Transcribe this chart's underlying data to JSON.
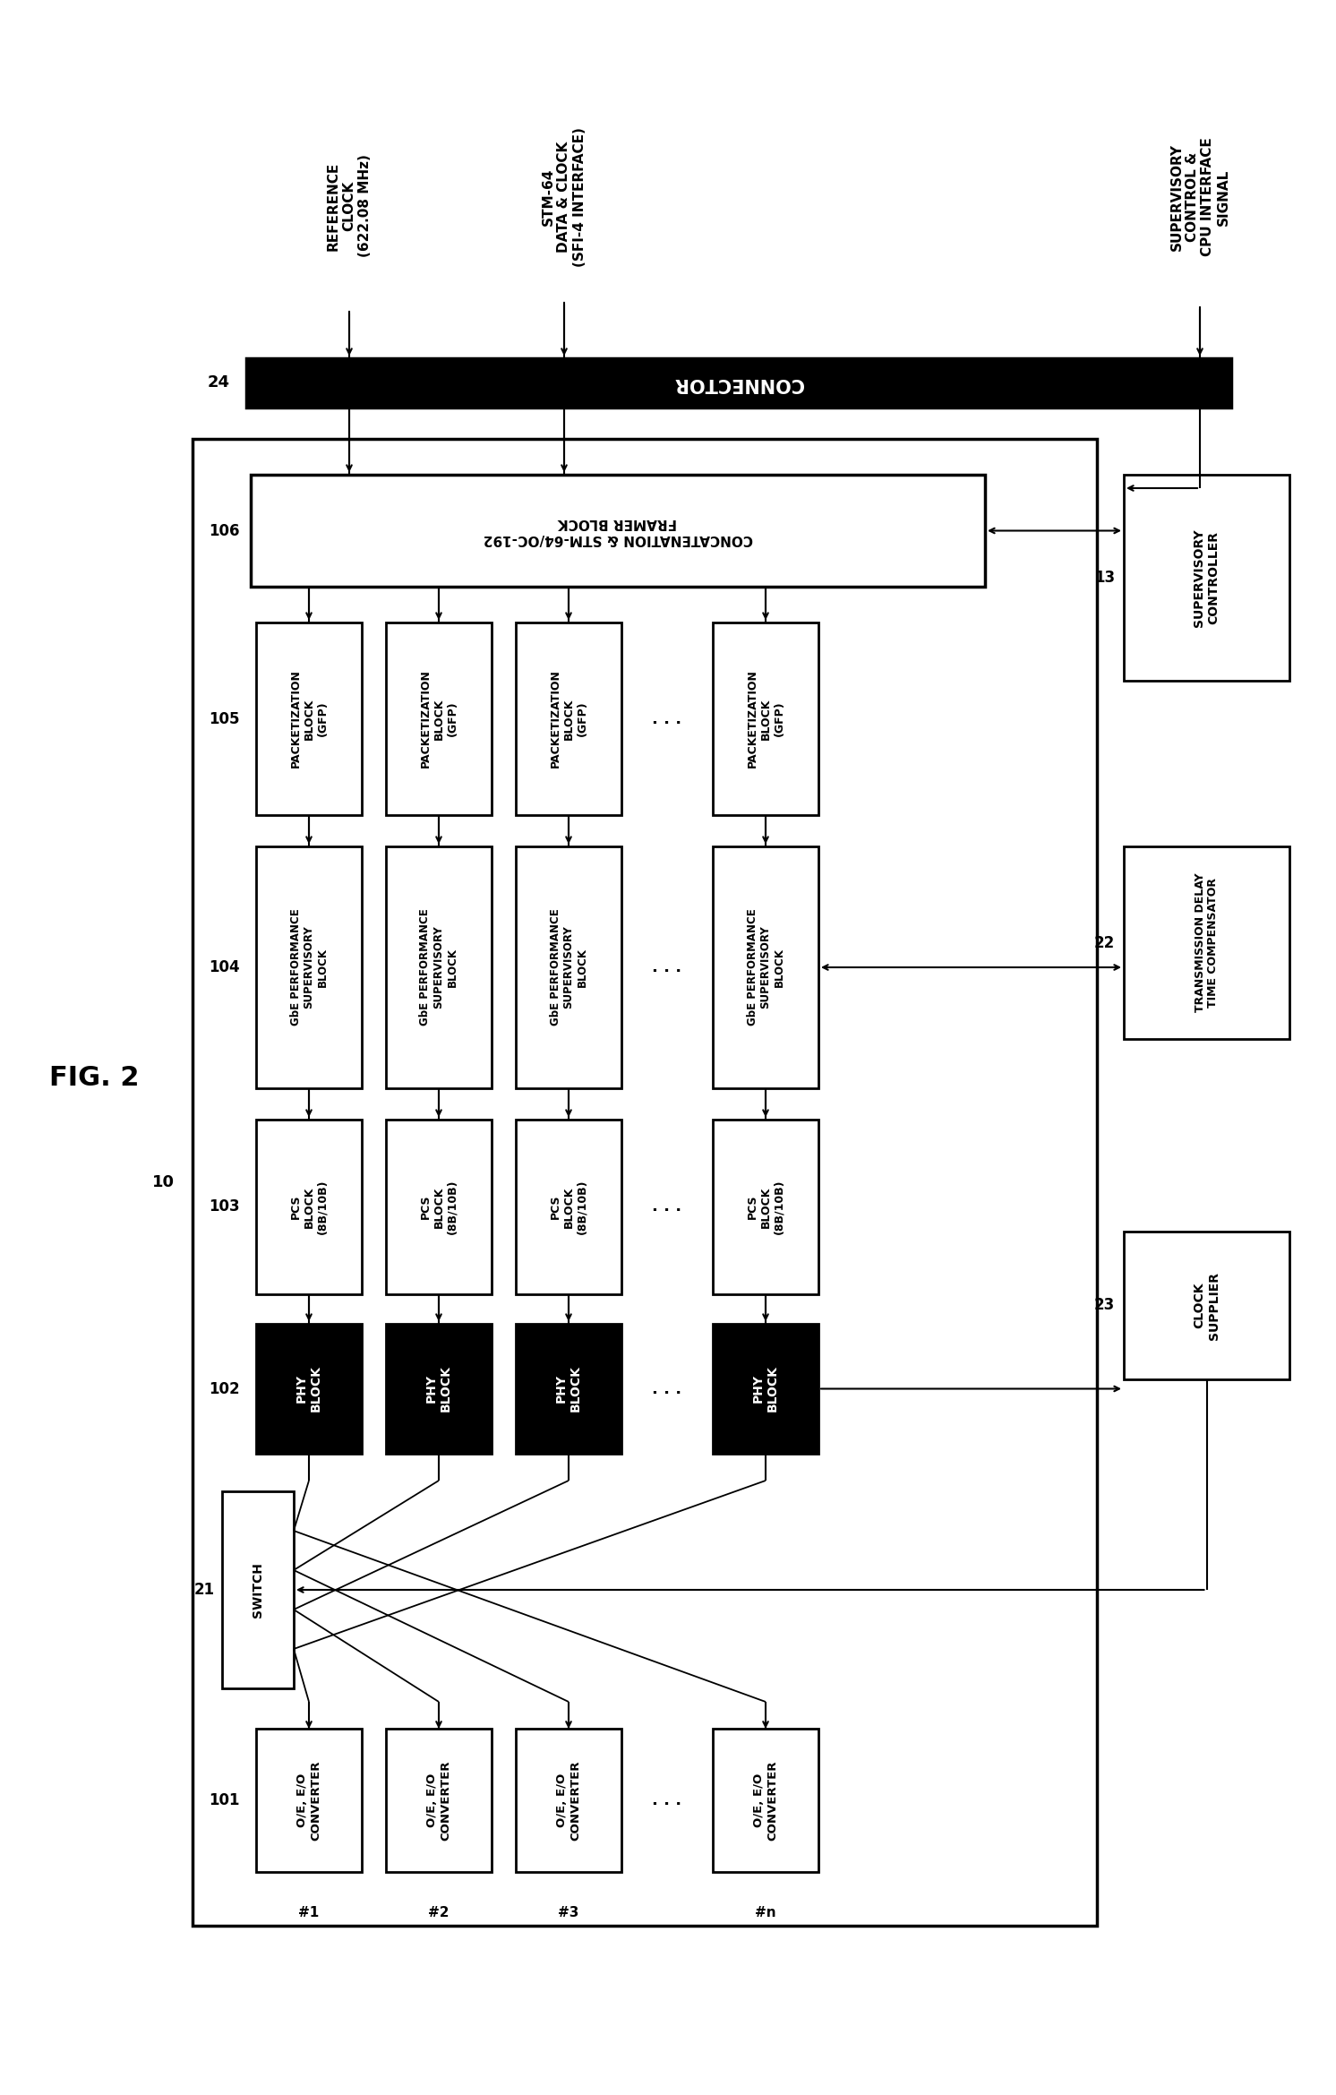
{
  "bg_color": "#ffffff",
  "fig_label": "FIG. 2",
  "ref_clock_label": "REFERENCE\nCLOCK\n(622.08 MHz)",
  "stm64_label": "STM-64\nDATA & CLOCK\n(SFI-4 INTERFACE)",
  "supervisory_sig_label": "SUPERVISORY\nCONTROL &\nCPU INTERFACE\nSIGNAL",
  "connector_label": "CONNECTOR",
  "connector_num": "24",
  "framer_label": "CONCATENATION & STM-64/OC-192\nFRAMER BLOCK",
  "framer_num": "106",
  "pack_label": "PACKETIZATION\nBLOCK\n(GFP)",
  "pack_num": "105",
  "gbe_label": "GbE PERFORMANCE\nSUPERVISORY\nBLOCK",
  "gbe_num": "104",
  "pcs_label": "PCS\nBLOCK\n(8B/10B)",
  "pcs_num": "103",
  "phy_label": "PHY\nBLOCK",
  "phy_num": "102",
  "switch_label": "SWITCH",
  "switch_num": "21",
  "oeo_label": "O/E, E/O\nCONVERTER",
  "oeo_num": "101",
  "supervisory_ctrl_label": "SUPERVISORY\nCONTROLLER",
  "supervisory_ctrl_num": "13",
  "tx_delay_label": "TRANSMISSION DELAY\nTIME COMPENSATOR",
  "tx_delay_num": "22",
  "clock_supplier_label": "CLOCK\nSUPPLIER",
  "clock_num": "23",
  "main_num": "10",
  "port_labels": [
    "#1",
    "#2",
    "#3",
    "#n"
  ]
}
